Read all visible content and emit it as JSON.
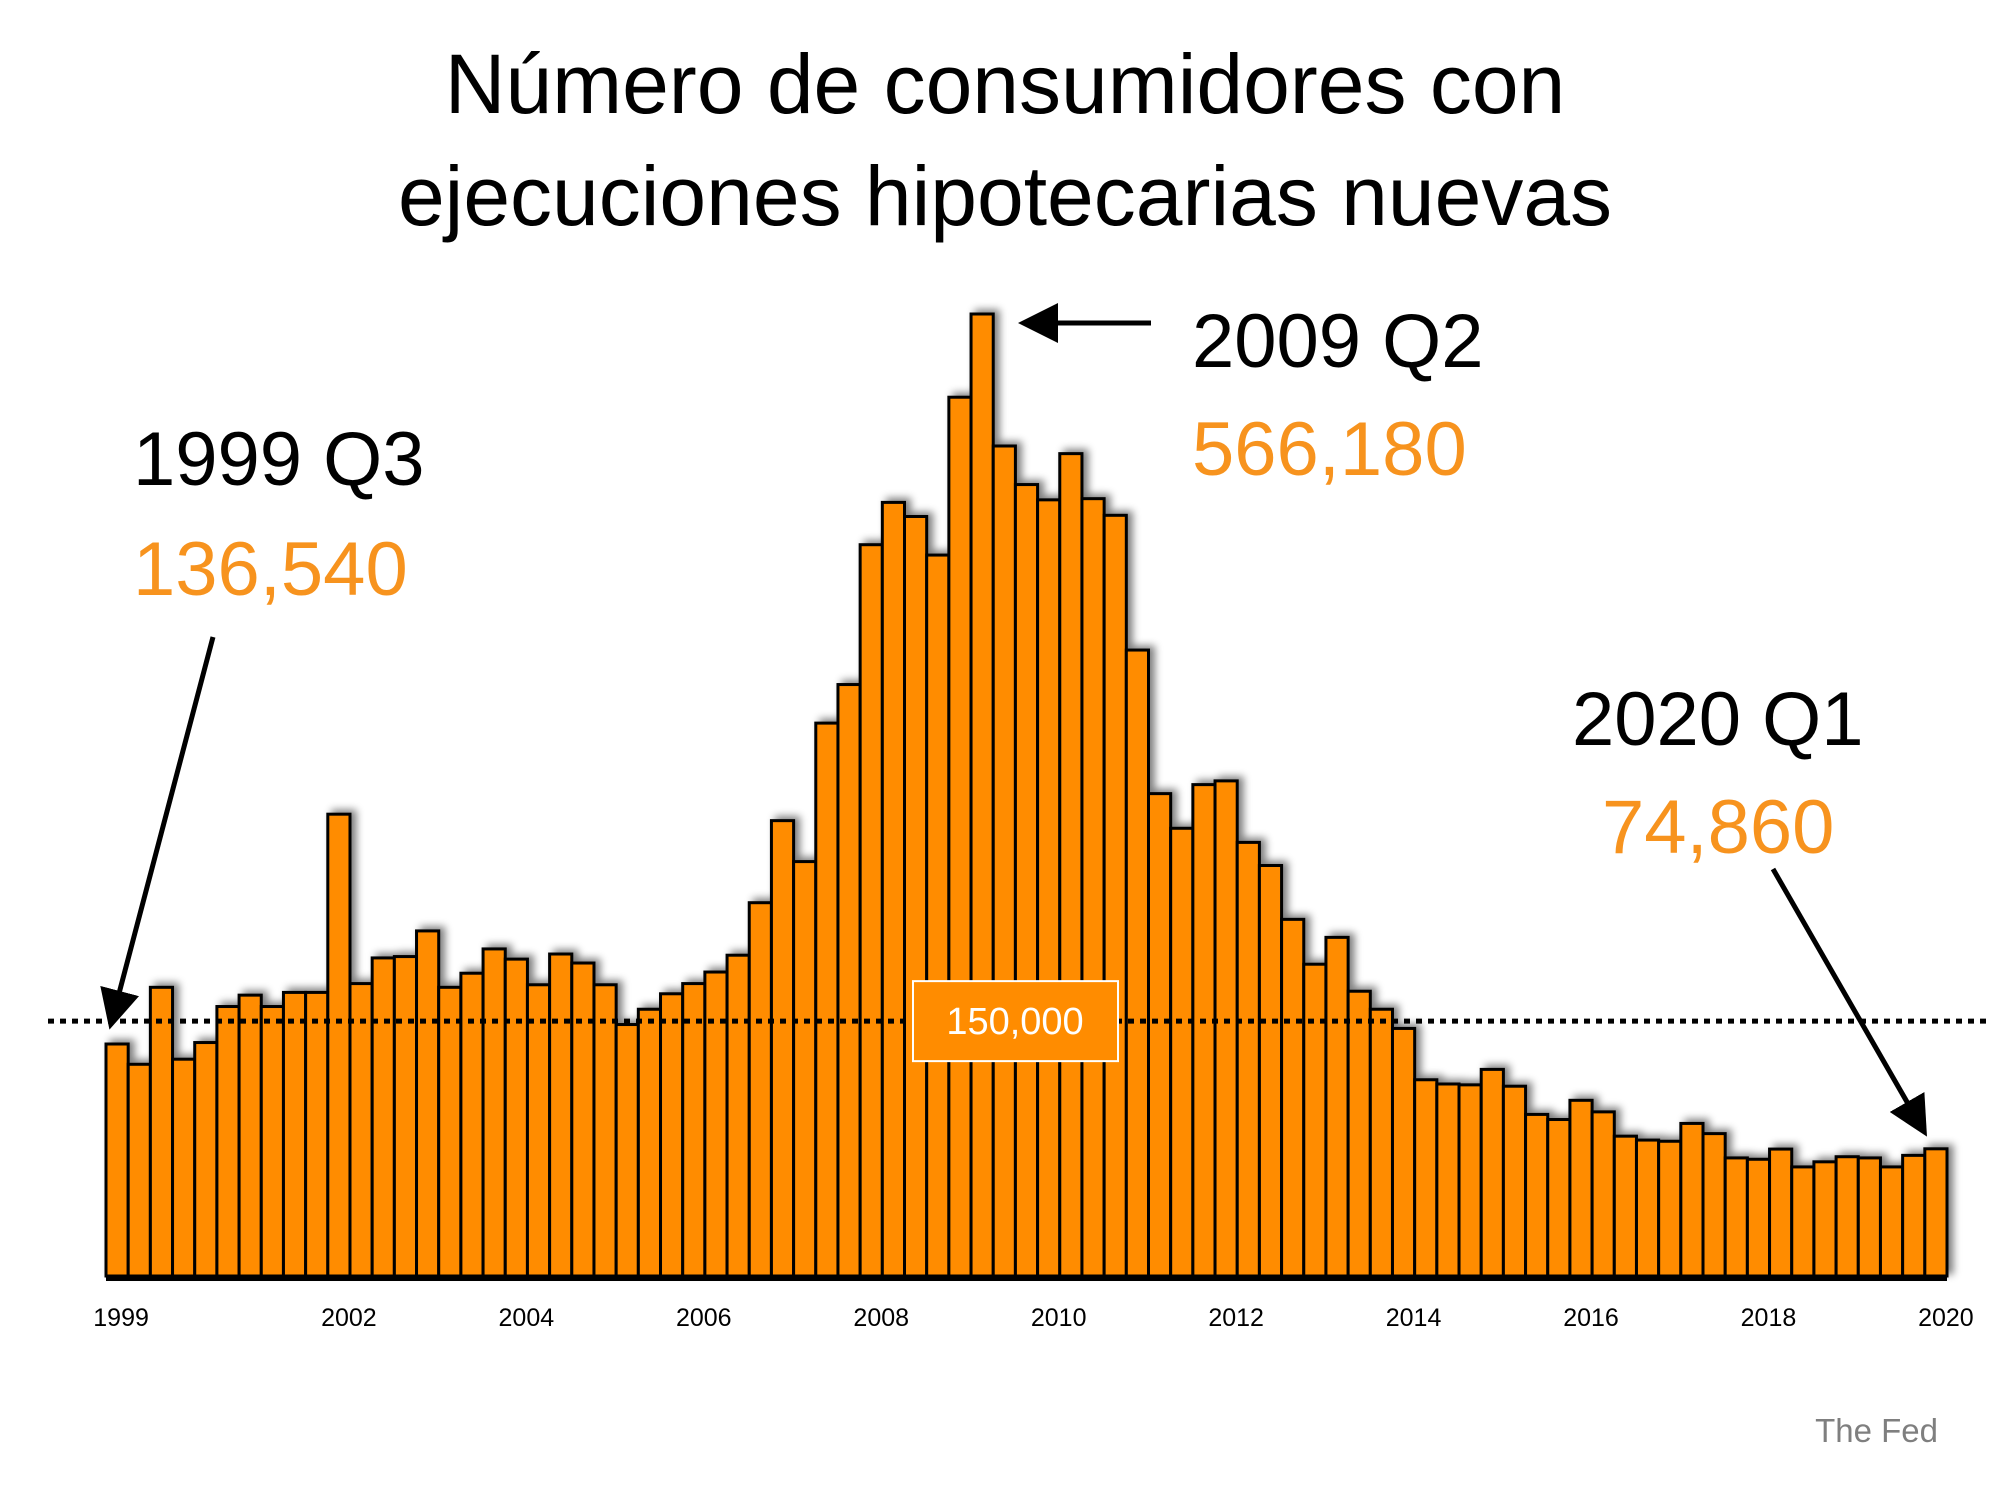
{
  "chart_data": {
    "type": "bar",
    "title": [
      "Número de consumidores con",
      "ejecuciones hipotecarias nuevas"
    ],
    "xlabel": "",
    "ylabel": "",
    "x_tick_labels": [
      "1999",
      "2002",
      "2004",
      "2006",
      "2008",
      "2010",
      "2012",
      "2014",
      "2016",
      "2018",
      "2020"
    ],
    "x_tick_positions": [
      "1999 Q3",
      "2002 Q1",
      "2004 Q1",
      "2006 Q1",
      "2008 Q1",
      "2010 Q1",
      "2012 Q1",
      "2014 Q1",
      "2016 Q1",
      "2018 Q1",
      "2020 Q1"
    ],
    "start_quarter": "1999 Q3",
    "end_quarter": "2020 Q1",
    "values": [
      136540,
      124600,
      169900,
      127600,
      137400,
      158600,
      165300,
      158600,
      166900,
      166900,
      271800,
      172100,
      187200,
      188000,
      203100,
      169900,
      178200,
      192500,
      186500,
      171400,
      189500,
      184200,
      171400,
      148000,
      157000,
      166100,
      172100,
      178900,
      188800,
      219700,
      268000,
      243900,
      325400,
      348100,
      430400,
      455300,
      447000,
      424300,
      517200,
      566180,
      488500,
      465800,
      456800,
      484000,
      457500,
      447700,
      368400,
      283900,
      263500,
      289200,
      291400,
      255200,
      241600,
      209900,
      183500,
      199300,
      167600,
      157000,
      145700,
      115500,
      113000,
      112500,
      121600,
      111700,
      95100,
      92100,
      103400,
      96600,
      82300,
      80000,
      79300,
      89800,
      83800,
      69500,
      68700,
      74700,
      64200,
      67200,
      70200,
      69500,
      64200,
      71000,
      74860
    ],
    "ylim": [
      0,
      566180
    ],
    "grid": false,
    "legend": "none",
    "reference_line": {
      "value": 150000,
      "label": "150,000",
      "style": "dotted"
    },
    "annotations": [
      {
        "period": "1999 Q3",
        "value_label": "136,540"
      },
      {
        "period": "2009 Q2",
        "value_label": "566,180"
      },
      {
        "period": "2020 Q1",
        "value_label": "74,860"
      }
    ],
    "colors": {
      "bar": "#ff8c00",
      "bar_outline": "#000000",
      "highlight_text": "#f7931e",
      "source_text": "#7f7f7f"
    }
  },
  "source": "The Fed"
}
